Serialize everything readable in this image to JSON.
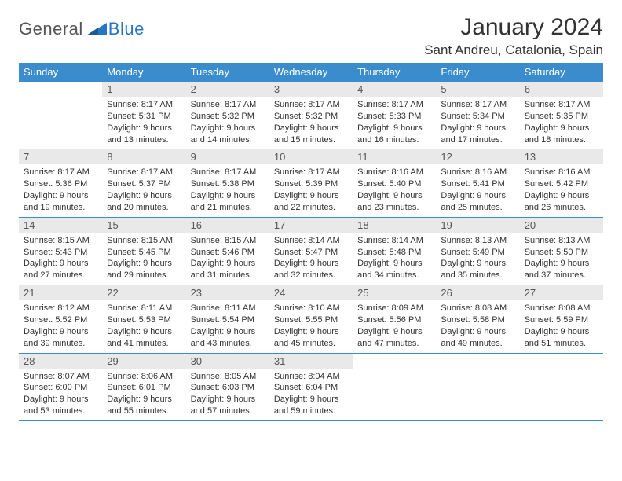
{
  "brand": {
    "general": "General",
    "blue": "Blue"
  },
  "title": "January 2024",
  "location": "Sant Andreu, Catalonia, Spain",
  "colors": {
    "header_bg": "#3a8ccc",
    "header_text": "#ffffff",
    "daynum_bg": "#e9e9e9",
    "border": "#3a8ccc",
    "body_text": "#333333",
    "brand_blue": "#2874c7",
    "brand_gray": "#555555",
    "page_bg": "#ffffff"
  },
  "typography": {
    "title_fontsize": 30,
    "location_fontsize": 17,
    "th_fontsize": 13,
    "daynum_fontsize": 13,
    "cell_fontsize": 11,
    "logo_fontsize": 22
  },
  "day_headers": [
    "Sunday",
    "Monday",
    "Tuesday",
    "Wednesday",
    "Thursday",
    "Friday",
    "Saturday"
  ],
  "layout": {
    "first_weekday_index": 1,
    "days_in_month": 31,
    "cols": 7,
    "rows": 5
  },
  "days": [
    {
      "n": 1,
      "sunrise": "8:17 AM",
      "sunset": "5:31 PM",
      "daylight": "9 hours and 13 minutes."
    },
    {
      "n": 2,
      "sunrise": "8:17 AM",
      "sunset": "5:32 PM",
      "daylight": "9 hours and 14 minutes."
    },
    {
      "n": 3,
      "sunrise": "8:17 AM",
      "sunset": "5:32 PM",
      "daylight": "9 hours and 15 minutes."
    },
    {
      "n": 4,
      "sunrise": "8:17 AM",
      "sunset": "5:33 PM",
      "daylight": "9 hours and 16 minutes."
    },
    {
      "n": 5,
      "sunrise": "8:17 AM",
      "sunset": "5:34 PM",
      "daylight": "9 hours and 17 minutes."
    },
    {
      "n": 6,
      "sunrise": "8:17 AM",
      "sunset": "5:35 PM",
      "daylight": "9 hours and 18 minutes."
    },
    {
      "n": 7,
      "sunrise": "8:17 AM",
      "sunset": "5:36 PM",
      "daylight": "9 hours and 19 minutes."
    },
    {
      "n": 8,
      "sunrise": "8:17 AM",
      "sunset": "5:37 PM",
      "daylight": "9 hours and 20 minutes."
    },
    {
      "n": 9,
      "sunrise": "8:17 AM",
      "sunset": "5:38 PM",
      "daylight": "9 hours and 21 minutes."
    },
    {
      "n": 10,
      "sunrise": "8:17 AM",
      "sunset": "5:39 PM",
      "daylight": "9 hours and 22 minutes."
    },
    {
      "n": 11,
      "sunrise": "8:16 AM",
      "sunset": "5:40 PM",
      "daylight": "9 hours and 23 minutes."
    },
    {
      "n": 12,
      "sunrise": "8:16 AM",
      "sunset": "5:41 PM",
      "daylight": "9 hours and 25 minutes."
    },
    {
      "n": 13,
      "sunrise": "8:16 AM",
      "sunset": "5:42 PM",
      "daylight": "9 hours and 26 minutes."
    },
    {
      "n": 14,
      "sunrise": "8:15 AM",
      "sunset": "5:43 PM",
      "daylight": "9 hours and 27 minutes."
    },
    {
      "n": 15,
      "sunrise": "8:15 AM",
      "sunset": "5:45 PM",
      "daylight": "9 hours and 29 minutes."
    },
    {
      "n": 16,
      "sunrise": "8:15 AM",
      "sunset": "5:46 PM",
      "daylight": "9 hours and 31 minutes."
    },
    {
      "n": 17,
      "sunrise": "8:14 AM",
      "sunset": "5:47 PM",
      "daylight": "9 hours and 32 minutes."
    },
    {
      "n": 18,
      "sunrise": "8:14 AM",
      "sunset": "5:48 PM",
      "daylight": "9 hours and 34 minutes."
    },
    {
      "n": 19,
      "sunrise": "8:13 AM",
      "sunset": "5:49 PM",
      "daylight": "9 hours and 35 minutes."
    },
    {
      "n": 20,
      "sunrise": "8:13 AM",
      "sunset": "5:50 PM",
      "daylight": "9 hours and 37 minutes."
    },
    {
      "n": 21,
      "sunrise": "8:12 AM",
      "sunset": "5:52 PM",
      "daylight": "9 hours and 39 minutes."
    },
    {
      "n": 22,
      "sunrise": "8:11 AM",
      "sunset": "5:53 PM",
      "daylight": "9 hours and 41 minutes."
    },
    {
      "n": 23,
      "sunrise": "8:11 AM",
      "sunset": "5:54 PM",
      "daylight": "9 hours and 43 minutes."
    },
    {
      "n": 24,
      "sunrise": "8:10 AM",
      "sunset": "5:55 PM",
      "daylight": "9 hours and 45 minutes."
    },
    {
      "n": 25,
      "sunrise": "8:09 AM",
      "sunset": "5:56 PM",
      "daylight": "9 hours and 47 minutes."
    },
    {
      "n": 26,
      "sunrise": "8:08 AM",
      "sunset": "5:58 PM",
      "daylight": "9 hours and 49 minutes."
    },
    {
      "n": 27,
      "sunrise": "8:08 AM",
      "sunset": "5:59 PM",
      "daylight": "9 hours and 51 minutes."
    },
    {
      "n": 28,
      "sunrise": "8:07 AM",
      "sunset": "6:00 PM",
      "daylight": "9 hours and 53 minutes."
    },
    {
      "n": 29,
      "sunrise": "8:06 AM",
      "sunset": "6:01 PM",
      "daylight": "9 hours and 55 minutes."
    },
    {
      "n": 30,
      "sunrise": "8:05 AM",
      "sunset": "6:03 PM",
      "daylight": "9 hours and 57 minutes."
    },
    {
      "n": 31,
      "sunrise": "8:04 AM",
      "sunset": "6:04 PM",
      "daylight": "9 hours and 59 minutes."
    }
  ],
  "labels": {
    "sunrise": "Sunrise:",
    "sunset": "Sunset:",
    "daylight": "Daylight:"
  }
}
